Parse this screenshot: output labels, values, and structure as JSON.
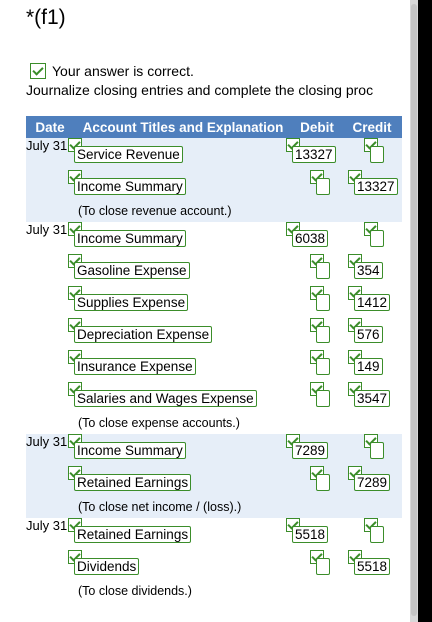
{
  "title": "*(f1)",
  "feedback": {
    "text": "Your answer is correct."
  },
  "instruction": "Journalize closing entries and complete the closing proc",
  "table": {
    "headers": {
      "date": "Date",
      "account": "Account Titles and Explanation",
      "debit": "Debit",
      "credit": "Credit"
    },
    "entries": [
      {
        "date": "July 31",
        "lines": [
          {
            "account": "Service Revenue",
            "debit": "13327",
            "credit": ""
          },
          {
            "account": "Income Summary",
            "debit": "",
            "credit": "13327"
          }
        ],
        "memo": "(To close revenue account.)"
      },
      {
        "date": "July 31",
        "lines": [
          {
            "account": "Income Summary",
            "debit": "6038",
            "credit": ""
          },
          {
            "account": "Gasoline Expense",
            "debit": "",
            "credit": "354"
          },
          {
            "account": "Supplies Expense",
            "debit": "",
            "credit": "1412"
          },
          {
            "account": "Depreciation Expense",
            "debit": "",
            "credit": "576"
          },
          {
            "account": "Insurance Expense",
            "debit": "",
            "credit": "149"
          },
          {
            "account": "Salaries and Wages Expense",
            "debit": "",
            "credit": "3547"
          }
        ],
        "memo": "(To close expense accounts.)"
      },
      {
        "date": "July 31",
        "lines": [
          {
            "account": "Income Summary",
            "debit": "7289",
            "credit": ""
          },
          {
            "account": "Retained Earnings",
            "debit": "",
            "credit": "7289"
          }
        ],
        "memo": "(To close net income / (loss).)"
      },
      {
        "date": "July 31",
        "lines": [
          {
            "account": "Retained Earnings",
            "debit": "5518",
            "credit": ""
          },
          {
            "account": "Dividends",
            "debit": "",
            "credit": "5518"
          }
        ],
        "memo": "(To close dividends.)"
      }
    ]
  }
}
